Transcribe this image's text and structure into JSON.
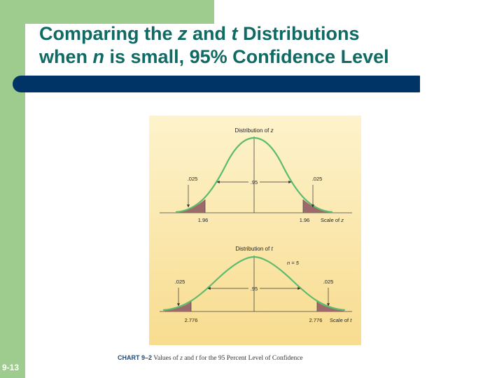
{
  "slide": {
    "title_line1_a": "Comparing the ",
    "title_line1_z": "z",
    "title_line1_b": " and ",
    "title_line1_t": "t",
    "title_line1_c": " Distributions",
    "title_line2_a": "when ",
    "title_line2_n": "n",
    "title_line2_b": " is small, 95% Confidence Level",
    "slide_number": "9-13"
  },
  "figure": {
    "z": {
      "heading": "Distribution of ",
      "heading_var": "z",
      "left_tail": ".025",
      "center": ".95",
      "right_tail": ".025",
      "left_crit": "1.96",
      "right_crit": "1.96",
      "scale": "Scale of ",
      "scale_var": "z"
    },
    "t": {
      "heading": "Distribution of ",
      "heading_var": "t",
      "n_label": "n = 5",
      "left_tail": ".025",
      "center": ".95",
      "right_tail": ".025",
      "left_crit": "2.776",
      "right_crit": "2.776",
      "scale": "Scale of ",
      "scale_var": "t"
    }
  },
  "caption": {
    "label": "CHART 9–2",
    "text_a": "  Values of ",
    "text_z": "z",
    "text_b": " and ",
    "text_t": "t",
    "text_c": " for the 95 Percent Level of Confidence"
  },
  "colors": {
    "accent_green": "#9dcc8e",
    "title_teal": "#0e6a63",
    "rule_navy": "#003366",
    "curve_green": "#5dbb6e",
    "tail_fill": "#9c6a6a",
    "figure_bg_top": "#fdf3cc",
    "figure_bg_bottom": "#f8dc8f"
  }
}
